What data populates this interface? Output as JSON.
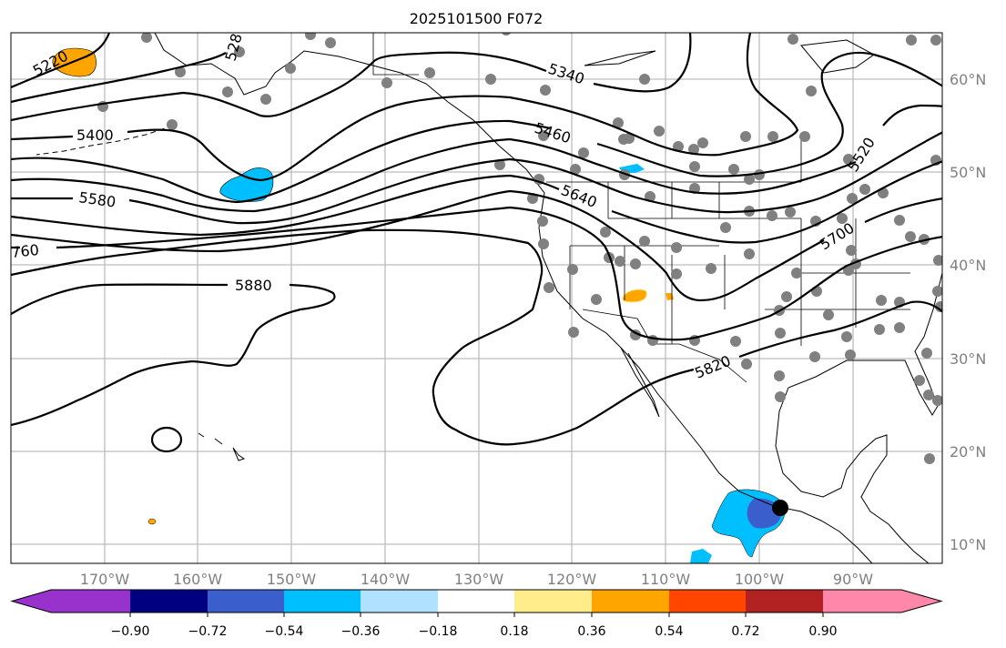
{
  "title": "2025101500 F072",
  "lon_ticks": [
    "170°W",
    "160°W",
    "150°W",
    "140°W",
    "130°W",
    "120°W",
    "110°W",
    "100°W",
    "90°W"
  ],
  "lat_ticks": [
    "60°N",
    "50°N",
    "40°N",
    "30°N",
    "20°N",
    "10°N"
  ],
  "contour_labels": {
    "c5220": "5220",
    "c5280": "528",
    "c5340": "5340",
    "c5400": "5400",
    "c5460": "5460",
    "c5520": "5520",
    "c5580": "5580",
    "c5640": "5640",
    "c5700": "5700",
    "c5760": "760",
    "c5820": "5820",
    "c5880": "5880"
  },
  "colorbar": {
    "ticks": [
      "−0.90",
      "−0.72",
      "−0.54",
      "−0.36",
      "−0.18",
      "0.18",
      "0.36",
      "0.54",
      "0.72",
      "0.90"
    ],
    "colors": [
      "#9932cc",
      "#000080",
      "#3a5fcd",
      "#00bfff",
      "#b0e2ff",
      "#ffffff",
      "#ffec8b",
      "#ffa500",
      "#ff4500",
      "#b22222",
      "#ff88aa"
    ]
  },
  "station_color": "#808080"
}
